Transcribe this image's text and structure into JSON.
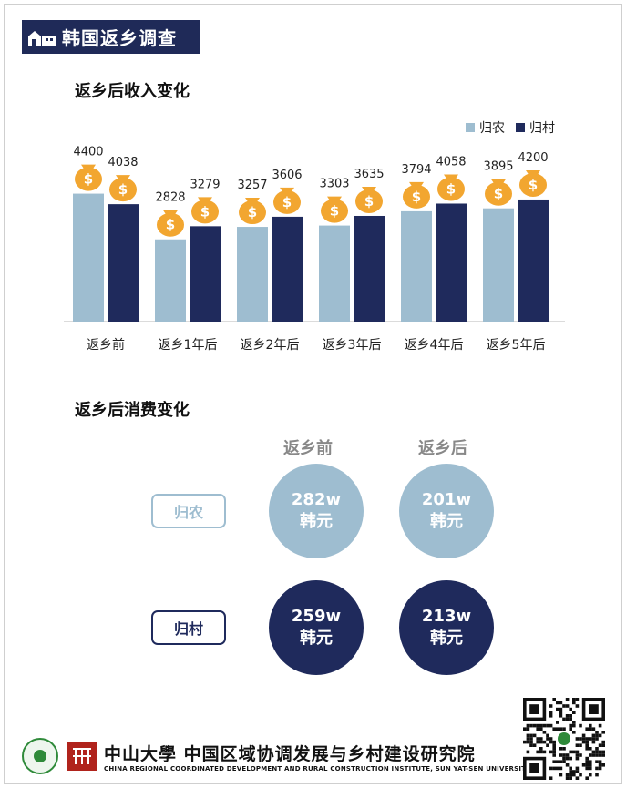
{
  "banner": {
    "title": "韩国返乡调查"
  },
  "income": {
    "title": "返乡后收入变化",
    "legend": [
      "归农",
      "归村"
    ]
  },
  "colors": {
    "series_a": "#9ebdd0",
    "series_b": "#1f2a5c",
    "money_bag": "#f2a630"
  },
  "chart_data": {
    "type": "bar",
    "title": "返乡后收入变化",
    "categories": [
      "返乡前",
      "返乡1年后",
      "返乡2年后",
      "返乡3年后",
      "返乡4年后",
      "返乡5年后"
    ],
    "series": [
      {
        "name": "归农",
        "values": [
          4400,
          2828,
          3257,
          3303,
          3794,
          3895
        ]
      },
      {
        "name": "归村",
        "values": [
          4038,
          3279,
          3606,
          3635,
          4058,
          4200
        ]
      }
    ],
    "ylim": [
      0,
      4700
    ],
    "legend": "top-right",
    "grid": false,
    "icon": "money-bag-icon"
  },
  "consumption": {
    "title": "返乡后消费变化",
    "columns": [
      "返乡前",
      "返乡后"
    ],
    "rows": [
      {
        "label": "归农",
        "values": [
          {
            "amount": "282w",
            "unit": "韩元"
          },
          {
            "amount": "201w",
            "unit": "韩元"
          }
        ]
      },
      {
        "label": "归村",
        "values": [
          {
            "amount": "259w",
            "unit": "韩元"
          },
          {
            "amount": "213w",
            "unit": "韩元"
          }
        ]
      }
    ]
  },
  "footer": {
    "university": "中山大學",
    "institute": "中国区域协调发展与乡村建设研究院",
    "english": "CHINA REGIONAL COORDINATED DEVELOPMENT AND RURAL CONSTRUCTION INSTITUTE, SUN YAT-SEN UNIVERSITY"
  }
}
